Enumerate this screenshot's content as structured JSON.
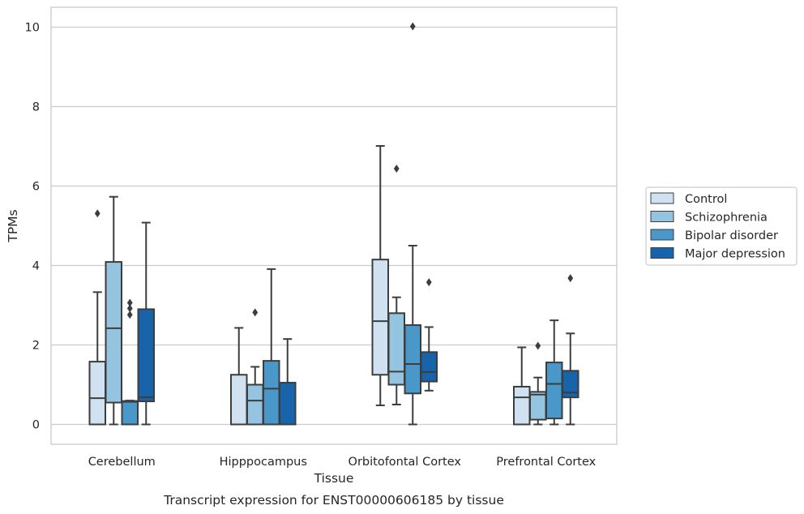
{
  "chart_data": {
    "type": "box",
    "title": "",
    "caption": "Transcript expression for ENST00000606185 by tissue",
    "xlabel": "Tissue",
    "ylabel": "TPMs",
    "ylim": [
      -0.5,
      10.5
    ],
    "yticks": [
      0,
      2,
      4,
      6,
      8,
      10
    ],
    "grid": "horizontal",
    "legend_position": "right",
    "categories": [
      "Cerebellum",
      "Hipppocampus",
      "Orbitofontal Cortex",
      "Prefrontal Cortex"
    ],
    "series": [
      {
        "name": "Control",
        "color": "#d0e1f2",
        "boxes": [
          {
            "whislo": 0,
            "q1": 0,
            "med": 0.66,
            "q3": 1.58,
            "whishi": 3.33,
            "fliers": [
              5.31
            ]
          },
          {
            "whislo": 0,
            "q1": 0,
            "med": 0,
            "q3": 1.25,
            "whishi": 2.43,
            "fliers": []
          },
          {
            "whislo": 0.48,
            "q1": 1.25,
            "med": 2.6,
            "q3": 4.15,
            "whishi": 7.01,
            "fliers": []
          },
          {
            "whislo": 0,
            "q1": 0,
            "med": 0.68,
            "q3": 0.95,
            "whishi": 1.94,
            "fliers": []
          }
        ]
      },
      {
        "name": "Schizophrenia",
        "color": "#94c4df",
        "boxes": [
          {
            "whislo": 0,
            "q1": 0.55,
            "med": 2.42,
            "q3": 4.09,
            "whishi": 5.73,
            "fliers": []
          },
          {
            "whislo": 0,
            "q1": 0,
            "med": 0.6,
            "q3": 1.0,
            "whishi": 1.45,
            "fliers": [
              2.82
            ]
          },
          {
            "whislo": 0.5,
            "q1": 1.0,
            "med": 1.33,
            "q3": 2.8,
            "whishi": 3.2,
            "fliers": [
              6.44
            ]
          },
          {
            "whislo": 0,
            "q1": 0.12,
            "med": 0.75,
            "q3": 0.82,
            "whishi": 1.18,
            "fliers": [
              1.98
            ]
          }
        ]
      },
      {
        "name": "Bipolar disorder",
        "color": "#4a98c9",
        "boxes": [
          {
            "whislo": 0,
            "q1": 0,
            "med": 0.57,
            "q3": 0.59,
            "whishi": 0.6,
            "fliers": [
              2.76,
              2.92,
              3.06
            ]
          },
          {
            "whislo": 0,
            "q1": 0,
            "med": 0.9,
            "q3": 1.6,
            "whishi": 3.91,
            "fliers": []
          },
          {
            "whislo": 0,
            "q1": 0.78,
            "med": 1.52,
            "q3": 2.5,
            "whishi": 4.5,
            "fliers": [
              10.02
            ]
          },
          {
            "whislo": 0,
            "q1": 0.15,
            "med": 1.02,
            "q3": 1.56,
            "whishi": 2.62,
            "fliers": []
          }
        ]
      },
      {
        "name": "Major depression",
        "color": "#1764ab",
        "boxes": [
          {
            "whislo": 0,
            "q1": 0.58,
            "med": 0.68,
            "q3": 2.9,
            "whishi": 5.08,
            "fliers": []
          },
          {
            "whislo": 0,
            "q1": 0,
            "med": 0,
            "q3": 1.05,
            "whishi": 2.15,
            "fliers": []
          },
          {
            "whislo": 0.85,
            "q1": 1.08,
            "med": 1.32,
            "q3": 1.82,
            "whishi": 2.45,
            "fliers": [
              3.58
            ]
          },
          {
            "whislo": 0,
            "q1": 0.68,
            "med": 0.8,
            "q3": 1.35,
            "whishi": 2.29,
            "fliers": [
              3.68
            ]
          }
        ]
      }
    ]
  }
}
